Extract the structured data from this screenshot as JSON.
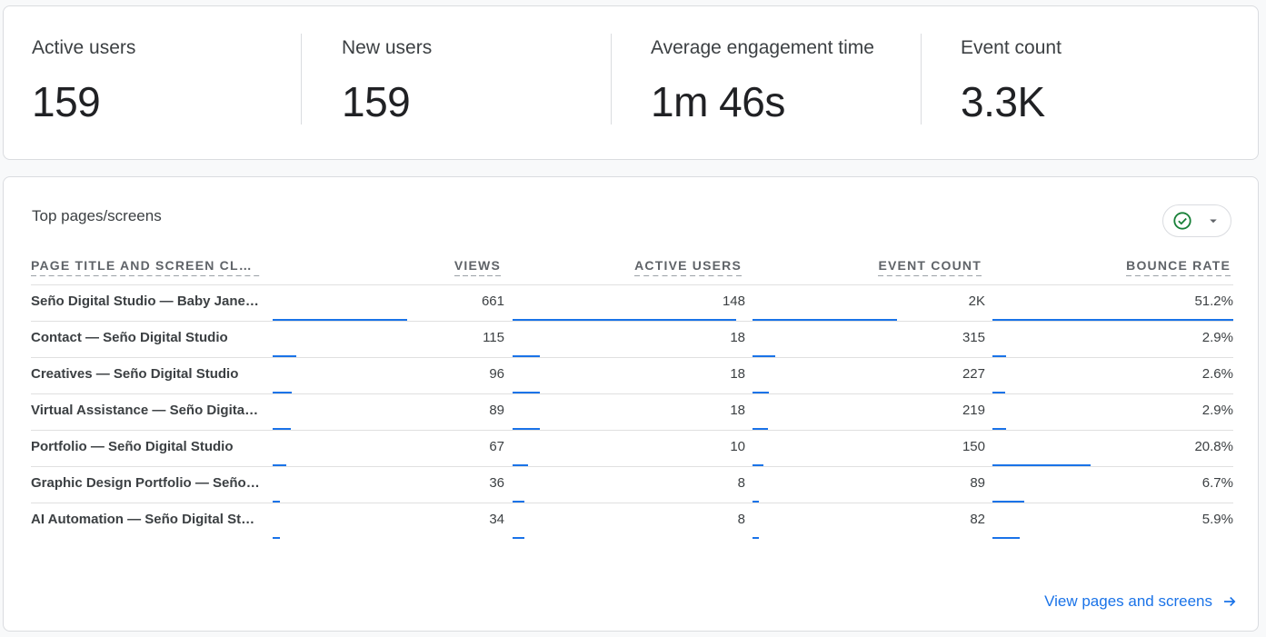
{
  "metrics": [
    {
      "label": "Active users",
      "value": "159"
    },
    {
      "label": "New users",
      "value": "159"
    },
    {
      "label": "Average engagement time",
      "value": "1m 46s"
    },
    {
      "label": "Event count",
      "value": "3.3K"
    }
  ],
  "table": {
    "title": "Top pages/screens",
    "headers": {
      "page": "PAGE TITLE AND SCREEN CLASS",
      "views": "VIEWS",
      "active_users": "ACTIVE USERS",
      "event_count": "EVENT COUNT",
      "bounce_rate": "BOUNCE RATE"
    },
    "rows": [
      {
        "page": "Seño Digital Studio — Baby Jane Seño",
        "views": "661",
        "views_frac": 1.0,
        "active_users": "148",
        "users_frac": 1.0,
        "event_count": "2K",
        "events_frac": 1.0,
        "bounce_rate": "51.2%",
        "bounce_frac": 1.0
      },
      {
        "page": "Contact — Seño Digital Studio",
        "views": "115",
        "views_frac": 0.174,
        "active_users": "18",
        "users_frac": 0.122,
        "event_count": "315",
        "events_frac": 0.158,
        "bounce_rate": "2.9%",
        "bounce_frac": 0.057
      },
      {
        "page": "Creatives — Seño Digital Studio",
        "views": "96",
        "views_frac": 0.145,
        "active_users": "18",
        "users_frac": 0.122,
        "event_count": "227",
        "events_frac": 0.114,
        "bounce_rate": "2.6%",
        "bounce_frac": 0.051
      },
      {
        "page": "Virtual Assistance — Seño Digital Studio",
        "views": "89",
        "views_frac": 0.135,
        "active_users": "18",
        "users_frac": 0.122,
        "event_count": "219",
        "events_frac": 0.11,
        "bounce_rate": "2.9%",
        "bounce_frac": 0.057
      },
      {
        "page": "Portfolio — Seño Digital Studio",
        "views": "67",
        "views_frac": 0.101,
        "active_users": "10",
        "users_frac": 0.068,
        "event_count": "150",
        "events_frac": 0.075,
        "bounce_rate": "20.8%",
        "bounce_frac": 0.406
      },
      {
        "page": "Graphic Design Portfolio — Seño Digital Studio",
        "views": "36",
        "views_frac": 0.054,
        "active_users": "8",
        "users_frac": 0.054,
        "event_count": "89",
        "events_frac": 0.045,
        "bounce_rate": "6.7%",
        "bounce_frac": 0.131
      },
      {
        "page": "AI Automation — Seño Digital Studio",
        "views": "34",
        "views_frac": 0.051,
        "active_users": "8",
        "users_frac": 0.054,
        "event_count": "82",
        "events_frac": 0.041,
        "bounce_rate": "5.9%",
        "bounce_frac": 0.115
      }
    ],
    "link_label": "View pages and screens"
  },
  "colors": {
    "accent": "#1a73e8",
    "check": "#188038"
  },
  "icons": {
    "compare": "check-circle-icon",
    "dropdown": "caret-down-icon",
    "link": "arrow-right-icon"
  }
}
